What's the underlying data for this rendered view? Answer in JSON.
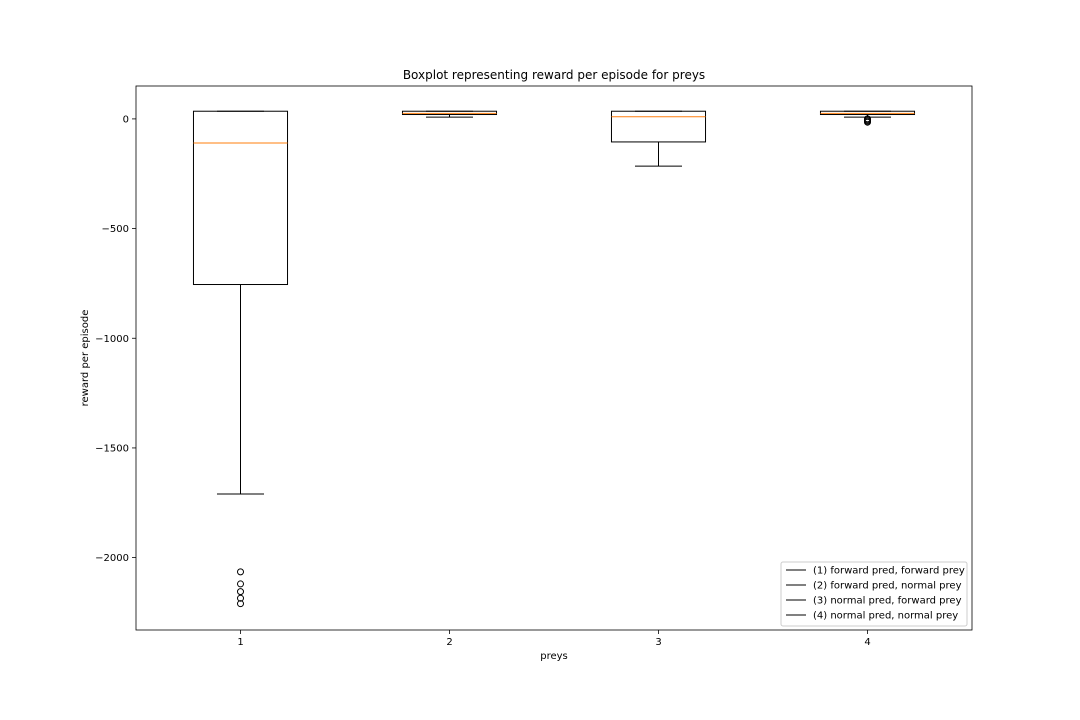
{
  "chart_data": {
    "type": "boxplot",
    "title": "Boxplot representing reward per episode for preys",
    "xlabel": "preys",
    "ylabel": "reward per episode",
    "categories": [
      "1",
      "2",
      "3",
      "4"
    ],
    "yticks": [
      -2000,
      -1500,
      -1000,
      -500,
      0
    ],
    "ytick_labels": [
      "−2000",
      "−1500",
      "−1000",
      "−500",
      "0"
    ],
    "ylim": [
      -2330,
      150
    ],
    "xlim": [
      0.5,
      4.5
    ],
    "grid": false,
    "legend_position": "lower-right",
    "colors": {
      "box": "#000000",
      "median": "#ff7f0e"
    },
    "boxes": [
      {
        "category": "1",
        "whisker_low": -1710,
        "q1": -755,
        "median": -110,
        "q3": 35,
        "whisker_high": 35,
        "outliers": [
          -2065,
          -2120,
          -2155,
          -2185,
          -2210
        ]
      },
      {
        "category": "2",
        "whisker_low": 8,
        "q1": 20,
        "median": 25,
        "q3": 35,
        "whisker_high": 35,
        "outliers": []
      },
      {
        "category": "3",
        "whisker_low": -215,
        "q1": -105,
        "median": 10,
        "q3": 35,
        "whisker_high": 35,
        "outliers": []
      },
      {
        "category": "4",
        "whisker_low": 8,
        "q1": 20,
        "median": 25,
        "q3": 35,
        "whisker_high": 35,
        "outliers": [
          0,
          -5,
          -10,
          -15
        ]
      }
    ],
    "legend": [
      "(1) forward pred, forward prey",
      "(2) forward pred, normal prey",
      "(3) normal pred, forward prey",
      "(4) normal pred, normal prey"
    ]
  }
}
